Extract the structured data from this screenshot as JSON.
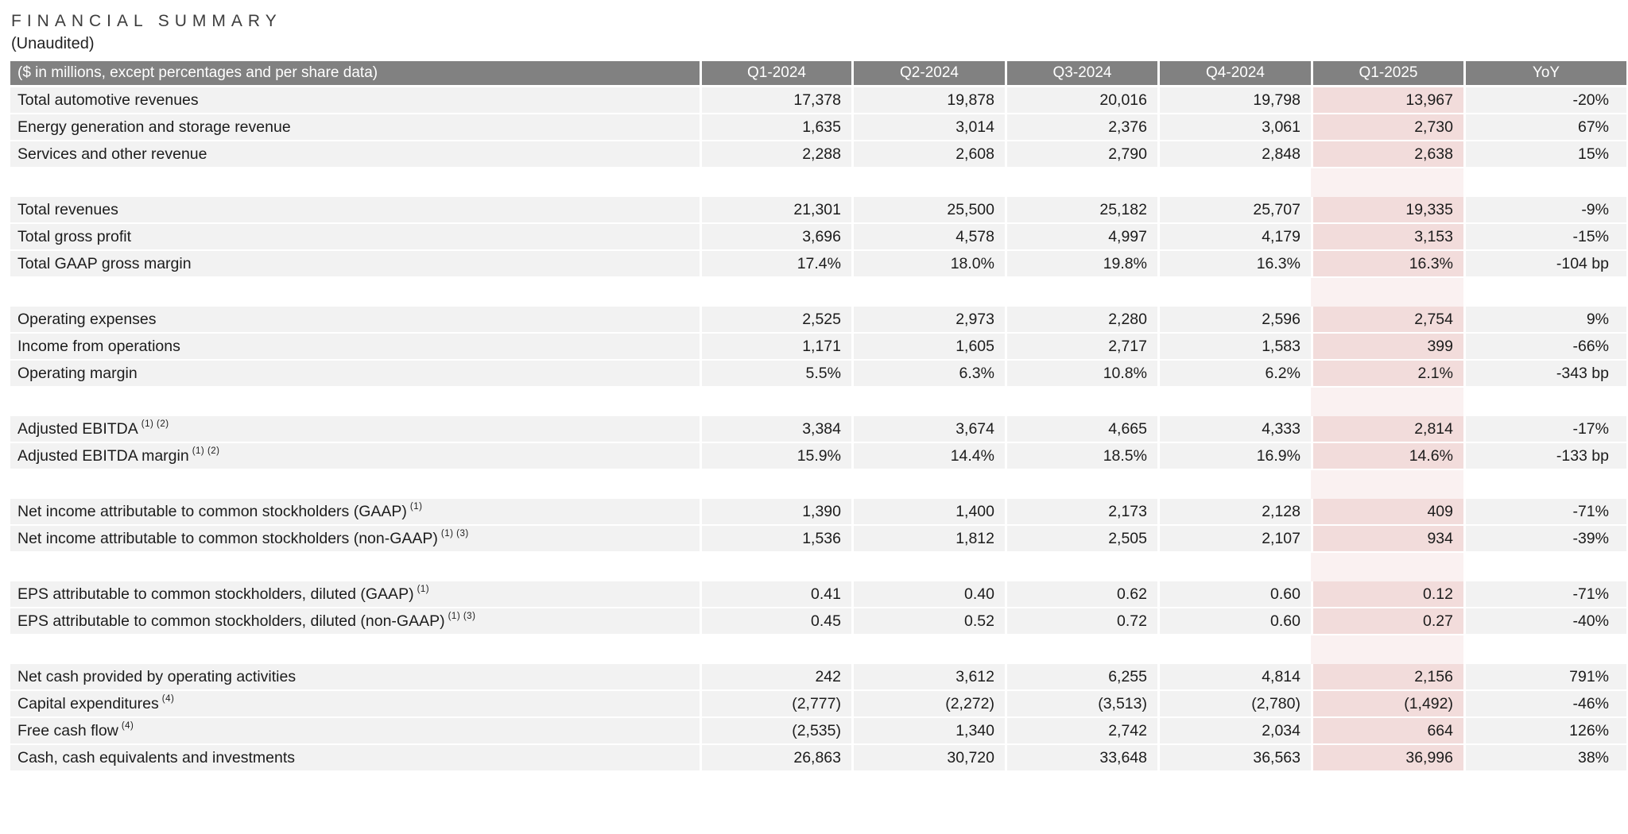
{
  "title": "FINANCIAL SUMMARY",
  "subtitle": "(Unaudited)",
  "colors": {
    "header_bg": "#818181",
    "header_text": "#ffffff",
    "row_bg": "#f2f2f2",
    "highlight_bg": "#f2dcdb",
    "highlight_spacer_bg": "#faf1f1",
    "body_text": "#1c1c1c"
  },
  "table": {
    "header_label": "($ in millions, except percentages and per share data)",
    "columns": [
      "Q1-2024",
      "Q2-2024",
      "Q3-2024",
      "Q4-2024",
      "Q1-2025",
      "YoY"
    ],
    "highlight_column": "Q1-2025",
    "highlight_column_index": 4,
    "sections": [
      {
        "rows": [
          {
            "label": "Total automotive revenues",
            "sup": "",
            "values": [
              "17,378",
              "19,878",
              "20,016",
              "19,798",
              "13,967",
              "-20%"
            ]
          },
          {
            "label": "Energy generation and storage revenue",
            "sup": "",
            "values": [
              "1,635",
              "3,014",
              "2,376",
              "3,061",
              "2,730",
              "67%"
            ]
          },
          {
            "label": "Services and other revenue",
            "sup": "",
            "values": [
              "2,288",
              "2,608",
              "2,790",
              "2,848",
              "2,638",
              "15%"
            ]
          }
        ]
      },
      {
        "rows": [
          {
            "label": "Total revenues",
            "sup": "",
            "values": [
              "21,301",
              "25,500",
              "25,182",
              "25,707",
              "19,335",
              "-9%"
            ]
          },
          {
            "label": "Total gross profit",
            "sup": "",
            "values": [
              "3,696",
              "4,578",
              "4,997",
              "4,179",
              "3,153",
              "-15%"
            ]
          },
          {
            "label": "Total GAAP gross margin",
            "sup": "",
            "values": [
              "17.4%",
              "18.0%",
              "19.8%",
              "16.3%",
              "16.3%",
              "-104 bp"
            ]
          }
        ]
      },
      {
        "rows": [
          {
            "label": "Operating expenses",
            "sup": "",
            "values": [
              "2,525",
              "2,973",
              "2,280",
              "2,596",
              "2,754",
              "9%"
            ]
          },
          {
            "label": "Income from operations",
            "sup": "",
            "values": [
              "1,171",
              "1,605",
              "2,717",
              "1,583",
              "399",
              "-66%"
            ]
          },
          {
            "label": "Operating margin",
            "sup": "",
            "values": [
              "5.5%",
              "6.3%",
              "10.8%",
              "6.2%",
              "2.1%",
              "-343 bp"
            ]
          }
        ]
      },
      {
        "rows": [
          {
            "label": "Adjusted EBITDA",
            "sup": "(1) (2)",
            "values": [
              "3,384",
              "3,674",
              "4,665",
              "4,333",
              "2,814",
              "-17%"
            ]
          },
          {
            "label": "Adjusted EBITDA margin",
            "sup": "(1) (2)",
            "values": [
              "15.9%",
              "14.4%",
              "18.5%",
              "16.9%",
              "14.6%",
              "-133 bp"
            ]
          }
        ]
      },
      {
        "rows": [
          {
            "label": "Net income attributable to common stockholders (GAAP)",
            "sup": "(1)",
            "values": [
              "1,390",
              "1,400",
              "2,173",
              "2,128",
              "409",
              "-71%"
            ]
          },
          {
            "label": "Net income attributable to common stockholders (non-GAAP)",
            "sup": "(1) (3)",
            "values": [
              "1,536",
              "1,812",
              "2,505",
              "2,107",
              "934",
              "-39%"
            ]
          }
        ]
      },
      {
        "rows": [
          {
            "label": "EPS attributable to common stockholders, diluted (GAAP)",
            "sup": "(1)",
            "values": [
              "0.41",
              "0.40",
              "0.62",
              "0.60",
              "0.12",
              "-71%"
            ]
          },
          {
            "label": "EPS attributable to common stockholders, diluted (non-GAAP)",
            "sup": "(1) (3)",
            "values": [
              "0.45",
              "0.52",
              "0.72",
              "0.60",
              "0.27",
              "-40%"
            ]
          }
        ]
      },
      {
        "rows": [
          {
            "label": "Net cash provided by operating activities",
            "sup": "",
            "values": [
              "242",
              "3,612",
              "6,255",
              "4,814",
              "2,156",
              "791%"
            ]
          },
          {
            "label": "Capital expenditures",
            "sup": "(4)",
            "values": [
              "(2,777)",
              "(2,272)",
              "(3,513)",
              "(2,780)",
              "(1,492)",
              "-46%"
            ]
          },
          {
            "label": "Free cash flow",
            "sup": "(4)",
            "values": [
              "(2,535)",
              "1,340",
              "2,742",
              "2,034",
              "664",
              "126%"
            ]
          },
          {
            "label": "Cash, cash equivalents and investments",
            "sup": "",
            "values": [
              "26,863",
              "30,720",
              "33,648",
              "36,563",
              "36,996",
              "38%"
            ]
          }
        ]
      }
    ]
  }
}
